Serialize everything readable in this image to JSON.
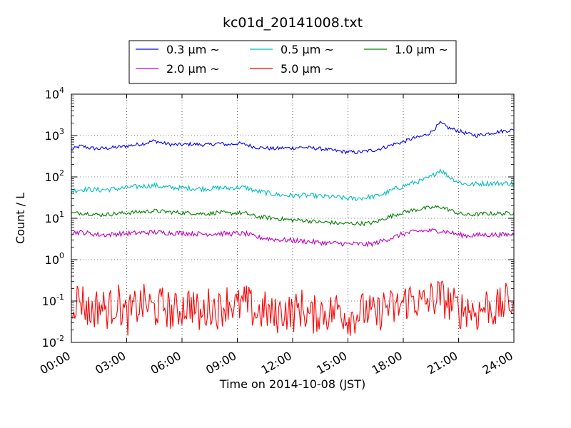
{
  "chart_data": {
    "type": "line",
    "title": "kc01d_20141008.txt",
    "xlabel": "Time on 2014-10-08 (JST)",
    "ylabel": "Count / L",
    "y_scale": "log",
    "ylim": [
      0.01,
      10000
    ],
    "xlim": [
      "00:00",
      "24:00"
    ],
    "x_tick_labels": [
      "00:00",
      "03:00",
      "06:00",
      "09:00",
      "12:00",
      "15:00",
      "18:00",
      "21:00",
      "24:00"
    ],
    "y_tick_labels": [
      {
        "base": "10",
        "exp": "-2"
      },
      {
        "base": "10",
        "exp": "-1"
      },
      {
        "base": "10",
        "exp": "0"
      },
      {
        "base": "10",
        "exp": "1"
      },
      {
        "base": "10",
        "exp": "2"
      },
      {
        "base": "10",
        "exp": "3"
      },
      {
        "base": "10",
        "exp": "4"
      }
    ],
    "grid": true,
    "legend_position": "top-center, above plot",
    "x_hours": [
      0,
      0.5,
      1,
      1.5,
      2,
      2.5,
      3,
      3.5,
      4,
      4.5,
      5,
      5.5,
      6,
      6.5,
      7,
      7.5,
      8,
      8.5,
      9,
      9.5,
      10,
      10.5,
      11,
      11.5,
      12,
      12.5,
      13,
      13.5,
      14,
      14.5,
      15,
      15.5,
      16,
      16.5,
      17,
      17.5,
      18,
      18.5,
      19,
      19.5,
      20,
      20.5,
      21,
      21.5,
      22,
      22.5,
      23,
      23.5,
      24
    ],
    "series": [
      {
        "name": "0.3 μm ~",
        "color": "#0000ff",
        "values": [
          450,
          560,
          500,
          480,
          500,
          520,
          560,
          600,
          650,
          750,
          650,
          600,
          600,
          620,
          600,
          600,
          650,
          600,
          650,
          600,
          520,
          500,
          480,
          500,
          500,
          520,
          500,
          480,
          450,
          420,
          400,
          390,
          420,
          450,
          520,
          620,
          700,
          850,
          950,
          1200,
          2000,
          1500,
          1300,
          1100,
          1000,
          1100,
          1200,
          1300,
          1350
        ]
      },
      {
        "name": "0.5 μm ~",
        "color": "#00bfbf",
        "values": [
          45,
          50,
          50,
          48,
          50,
          52,
          55,
          58,
          60,
          62,
          57,
          55,
          54,
          53,
          52,
          52,
          55,
          53,
          56,
          55,
          45,
          42,
          38,
          36,
          35,
          36,
          35,
          34,
          33,
          32,
          30,
          30,
          32,
          34,
          40,
          50,
          60,
          72,
          80,
          100,
          150,
          100,
          75,
          65,
          68,
          70,
          70,
          70,
          70
        ]
      },
      {
        "name": "1.0 μm ~",
        "color": "#008000",
        "values": [
          13,
          13.5,
          13,
          12,
          12.5,
          13,
          13.5,
          14,
          14.5,
          15,
          14.5,
          14,
          13.5,
          13.5,
          13,
          13,
          14,
          13,
          13.5,
          13,
          11,
          10.5,
          10,
          9.5,
          9,
          9,
          8.5,
          8,
          8,
          7.5,
          7.5,
          7.5,
          7.5,
          8,
          10,
          12,
          14,
          15.5,
          17,
          18,
          19,
          16,
          13,
          12,
          12.5,
          13,
          13,
          13,
          13.5
        ]
      },
      {
        "name": "2.0 μm ~",
        "color": "#bf00bf",
        "values": [
          4.5,
          4.6,
          4.3,
          4,
          4,
          4.2,
          4.3,
          4.4,
          4.5,
          4.6,
          4.5,
          4.4,
          4.4,
          4.3,
          4.2,
          4.2,
          4.3,
          4.2,
          4.3,
          4.2,
          3.5,
          3.3,
          3.1,
          3,
          2.9,
          2.8,
          2.7,
          2.6,
          2.5,
          2.5,
          2.4,
          2.4,
          2.3,
          2.5,
          3,
          3.5,
          4.2,
          4.6,
          5,
          5,
          5,
          4.6,
          4,
          3.8,
          3.9,
          4,
          4,
          4,
          4.1
        ]
      },
      {
        "name": "5.0 μm ~",
        "color": "#ff0000",
        "values": [
          0.09,
          0.12,
          0.05,
          0.08,
          0.06,
          0.1,
          0.04,
          0.07,
          0.09,
          0.06,
          0.08,
          0.05,
          0.07,
          0.09,
          0.04,
          0.08,
          0.06,
          0.1,
          0.07,
          0.09,
          0.05,
          0.06,
          0.04,
          0.06,
          0.05,
          0.07,
          0.04,
          0.06,
          0.05,
          0.07,
          0.04,
          0.05,
          0.06,
          0.04,
          0.08,
          0.06,
          0.09,
          0.12,
          0.08,
          0.11,
          0.13,
          0.09,
          0.06,
          0.07,
          0.05,
          0.08,
          0.06,
          0.09,
          0.1
        ]
      }
    ]
  }
}
